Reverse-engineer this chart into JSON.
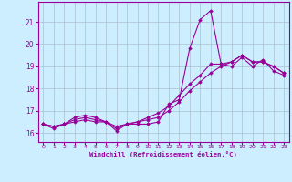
{
  "xlabel": "Windchill (Refroidissement éolien,°C)",
  "background_color": "#cceeff",
  "line_color": "#990099",
  "grid_color": "#aabbcc",
  "xlim": [
    -0.5,
    23.5
  ],
  "ylim": [
    15.6,
    21.9
  ],
  "xticks": [
    0,
    1,
    2,
    3,
    4,
    5,
    6,
    7,
    8,
    9,
    10,
    11,
    12,
    13,
    14,
    15,
    16,
    17,
    18,
    19,
    20,
    21,
    22,
    23
  ],
  "yticks": [
    16,
    17,
    18,
    19,
    20,
    21
  ],
  "line1_x": [
    0,
    1,
    2,
    3,
    4,
    5,
    6,
    7,
    8,
    9,
    10,
    11,
    12,
    13,
    14,
    15,
    16,
    17,
    18,
    19,
    20,
    21,
    22,
    23
  ],
  "line1_y": [
    16.4,
    16.2,
    16.4,
    16.5,
    16.6,
    16.5,
    16.5,
    16.1,
    16.4,
    16.4,
    16.4,
    16.5,
    17.3,
    17.5,
    19.8,
    21.1,
    21.5,
    19.1,
    19.0,
    19.4,
    19.0,
    19.3,
    18.8,
    18.6
  ],
  "line2_x": [
    0,
    1,
    2,
    3,
    4,
    5,
    6,
    7,
    8,
    9,
    10,
    11,
    12,
    13,
    14,
    15,
    16,
    17,
    18,
    19,
    20,
    21,
    22,
    23
  ],
  "line2_y": [
    16.4,
    16.3,
    16.4,
    16.7,
    16.8,
    16.7,
    16.5,
    16.3,
    16.4,
    16.5,
    16.7,
    16.9,
    17.2,
    17.7,
    18.2,
    18.6,
    19.1,
    19.1,
    19.2,
    19.5,
    19.2,
    19.2,
    19.0,
    18.7
  ],
  "line3_x": [
    0,
    1,
    2,
    3,
    4,
    5,
    6,
    7,
    8,
    9,
    10,
    11,
    12,
    13,
    14,
    15,
    16,
    17,
    18,
    19,
    20,
    21,
    22,
    23
  ],
  "line3_y": [
    16.4,
    16.3,
    16.4,
    16.6,
    16.7,
    16.6,
    16.5,
    16.2,
    16.4,
    16.5,
    16.6,
    16.7,
    17.0,
    17.4,
    17.9,
    18.3,
    18.7,
    19.0,
    19.2,
    19.5,
    19.2,
    19.2,
    19.0,
    18.7
  ]
}
